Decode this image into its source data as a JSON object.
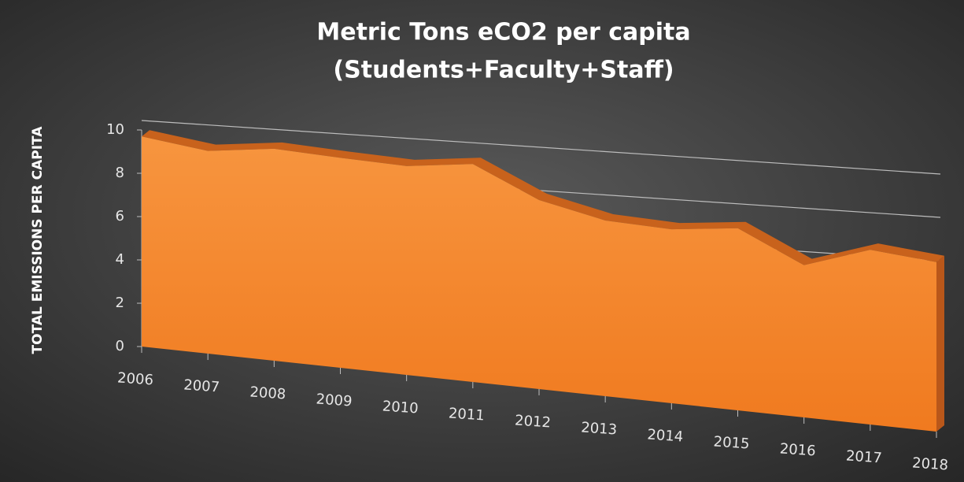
{
  "chart_data": {
    "type": "area",
    "title": [
      "Metric Tons eCO2 per capita",
      "(Students+Faculty+Staff)"
    ],
    "y_label": "TOTAL EMISSIONS PER CAPITA",
    "categories": [
      "2006",
      "2007",
      "2008",
      "2009",
      "2010",
      "2011",
      "2012",
      "2013",
      "2014",
      "2015",
      "2016",
      "2017",
      "2018"
    ],
    "values": [
      9.7,
      8.7,
      8.5,
      7.9,
      7.4,
      7.3,
      6.0,
      5.3,
      5.0,
      5.0,
      4.0,
      4.4,
      4.1
    ],
    "color": "#f58025",
    "ylim": [
      0,
      10
    ],
    "yticks": [
      0,
      2,
      4,
      6,
      8,
      10
    ],
    "grid": true
  }
}
